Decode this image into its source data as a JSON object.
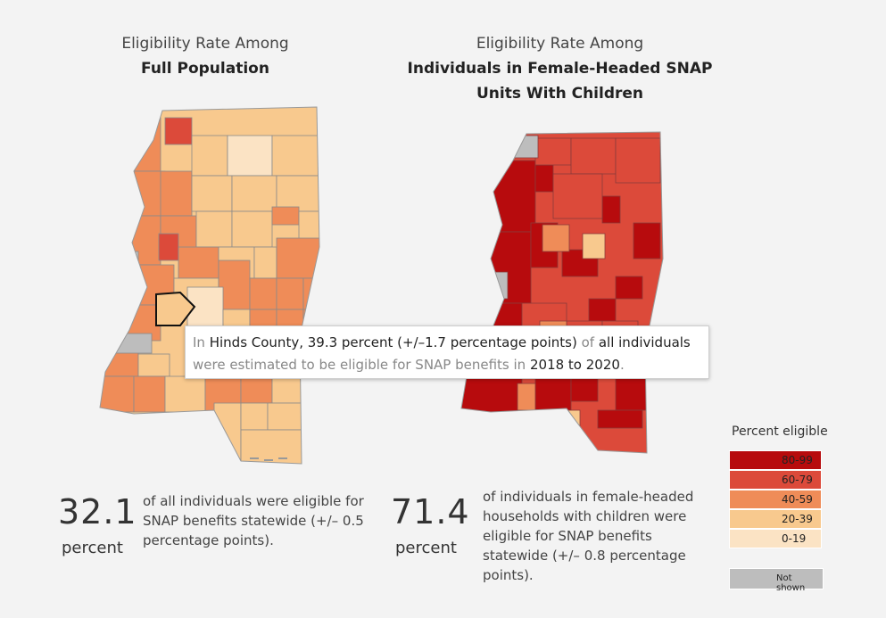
{
  "colors": {
    "c80_99": "#b70b0d",
    "c60_79": "#dc4a3a",
    "c40_59": "#ef8c58",
    "c20_39": "#f8c98e",
    "c0_19": "#fbe3c4",
    "not_shown": "#bdbdbd",
    "highlight_outline": "#222222"
  },
  "left_panel": {
    "title_line1": "Eligibility Rate Among",
    "title_line2": "Full Population",
    "stat_value": "32.1",
    "stat_unit": "percent",
    "stat_description": "of all individuals were eligible for SNAP benefits statewide (+/– 0.5 percentage points)."
  },
  "right_panel": {
    "title_line1": "Eligibility Rate Among",
    "title_line2": "Individuals in Female-Headed SNAP",
    "title_line3": "Units With Children",
    "stat_value": "71.4",
    "stat_unit": "percent",
    "stat_description": "of individuals in female-headed households with children were eligible for SNAP benefits statewide (+/– 0.8 percentage points)."
  },
  "tooltip": {
    "prefix": "In",
    "county": "Hinds County",
    "value_text": ", 39.3 percent (+/–1.7 percentage points)",
    "of": "of",
    "group": "all individuals",
    "line2_a": "were estimated to be eligible for SNAP benefits in",
    "years": "2018 to 2020",
    "period": "."
  },
  "legend": {
    "title": "Percent eligible",
    "items": [
      {
        "label": "80-99",
        "color": "#b70b0d"
      },
      {
        "label": "60-79",
        "color": "#dc4a3a"
      },
      {
        "label": "40-59",
        "color": "#ef8c58"
      },
      {
        "label": "20-39",
        "color": "#f8c98e"
      },
      {
        "label": "0-19",
        "color": "#fbe3c4"
      }
    ],
    "not_shown_label": "Not shown",
    "not_shown_color": "#bdbdbd"
  }
}
